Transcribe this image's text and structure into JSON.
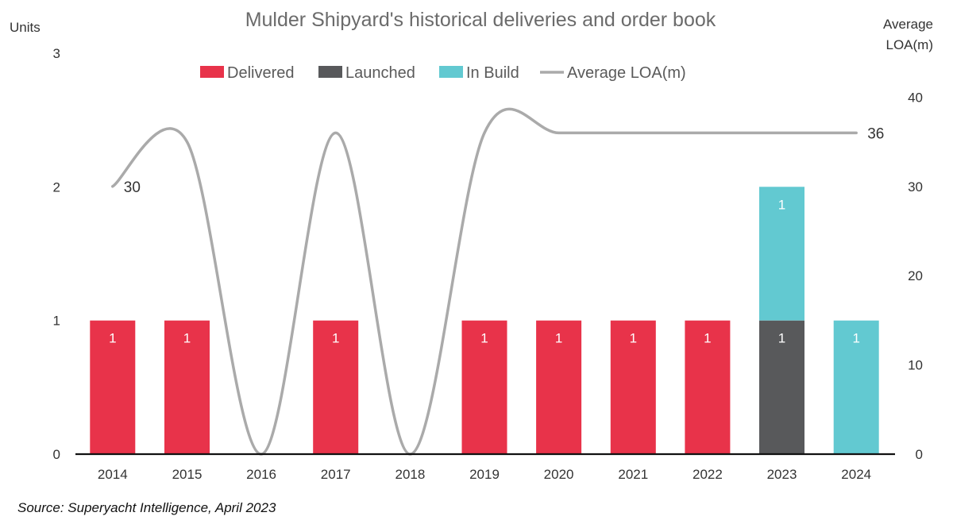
{
  "chart_data": {
    "type": "bar",
    "title": "Mulder Shipyard's historical deliveries and order book",
    "ylabel_left": "Units",
    "ylabel_right": [
      "Average",
      "LOA(m)"
    ],
    "categories": [
      "2014",
      "2015",
      "2016",
      "2017",
      "2018",
      "2019",
      "2020",
      "2021",
      "2022",
      "2023",
      "2024"
    ],
    "ylim_left": [
      0,
      3
    ],
    "yticks_left": [
      0,
      1,
      2,
      3
    ],
    "ylim_right": [
      0,
      50
    ],
    "yticks_right": [
      0,
      10,
      20,
      30,
      40
    ],
    "stacked": true,
    "series": [
      {
        "name": "Delivered",
        "kind": "bar",
        "color": "#e8334a",
        "values": [
          1,
          1,
          0,
          1,
          0,
          1,
          1,
          1,
          1,
          0,
          0
        ]
      },
      {
        "name": "Launched",
        "kind": "bar",
        "color": "#58595b",
        "values": [
          0,
          0,
          0,
          0,
          0,
          0,
          0,
          0,
          0,
          1,
          0
        ]
      },
      {
        "name": "In Build",
        "kind": "bar",
        "color": "#62c9d1",
        "values": [
          0,
          0,
          0,
          0,
          0,
          0,
          0,
          0,
          0,
          1,
          1
        ]
      },
      {
        "name": "Average LOA(m)",
        "kind": "line",
        "axis": "right",
        "color": "#aaaaaa",
        "values": [
          30,
          35,
          0,
          36,
          0,
          36,
          36,
          36,
          36,
          36,
          36
        ]
      }
    ],
    "line_labels": [
      {
        "index": 0,
        "text": "30"
      },
      {
        "index": 10,
        "text": "36"
      }
    ],
    "legend_position": "top-center",
    "grid": false,
    "source": "Source: Superyacht Intelligence, April 2023"
  }
}
